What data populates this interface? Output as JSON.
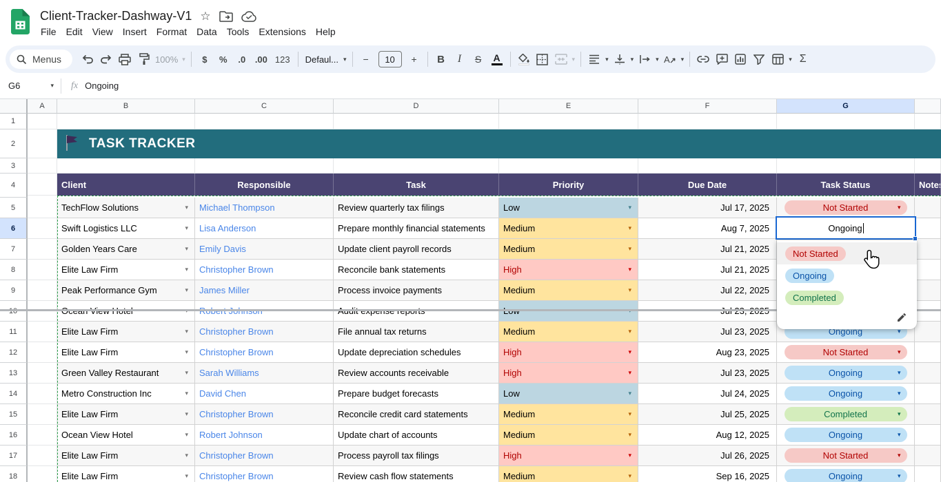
{
  "titlebar": {
    "title": "Client-Tracker-Dashway-V1",
    "menus": [
      "File",
      "Edit",
      "View",
      "Insert",
      "Format",
      "Data",
      "Tools",
      "Extensions",
      "Help"
    ]
  },
  "toolbar": {
    "search_label": "Menus",
    "zoom": "100%",
    "currency": "$",
    "percent": "%",
    "dec_less": ".0",
    "dec_more": ".00",
    "num_format": "123",
    "font_name": "Defaul...",
    "minus": "−",
    "font_size": "10",
    "plus": "+",
    "bold": "B",
    "italic": "I",
    "strike": "S",
    "text_color": "A",
    "sigma": "Σ"
  },
  "icons": {
    "caret": "▾",
    "star": "☆"
  },
  "formula_bar": {
    "cell_ref": "G6",
    "value": "Ongoing"
  },
  "grid": {
    "column_letters": [
      "A",
      "B",
      "C",
      "D",
      "E",
      "F",
      "G"
    ],
    "selected_column": "G",
    "row_numbers": [
      1,
      2,
      3,
      4,
      5,
      6,
      7,
      8,
      9,
      10,
      11,
      12,
      13,
      14,
      15,
      16,
      17,
      18
    ],
    "selected_row": 6
  },
  "sheet": {
    "banner_title": "TASK TRACKER",
    "headers": [
      "Client",
      "Responsible",
      "Task",
      "Priority",
      "Due Date",
      "Task Status",
      "Notes"
    ],
    "rows": [
      {
        "row": 5,
        "client": "TechFlow Solutions",
        "responsible": "Michael Thompson",
        "task": "Review quarterly tax filings",
        "priority": "Low",
        "due": "Jul 17, 2025",
        "status": "Not Started"
      },
      {
        "row": 6,
        "client": "Swift Logistics LLC",
        "responsible": "Lisa Anderson",
        "task": "Prepare monthly financial statements",
        "priority": "Medium",
        "due": "Aug 7, 2025",
        "status": null
      },
      {
        "row": 7,
        "client": "Golden Years Care",
        "responsible": "Emily Davis",
        "task": "Update client payroll records",
        "priority": "Medium",
        "due": "Jul 21, 2025",
        "status": null
      },
      {
        "row": 8,
        "client": "Elite Law Firm",
        "responsible": "Christopher Brown",
        "task": "Reconcile bank statements",
        "priority": "High",
        "due": "Jul 21, 2025",
        "status": null
      },
      {
        "row": 9,
        "client": "Peak Performance Gym",
        "responsible": "James Miller",
        "task": "Process invoice payments",
        "priority": "Medium",
        "due": "Jul 22, 2025",
        "status": null
      },
      {
        "row": 10,
        "client": "Ocean View Hotel",
        "responsible": "Robert Johnson",
        "task": "Audit expense reports",
        "priority": "Low",
        "due": "Jul 23, 2025",
        "status": null
      },
      {
        "row": 11,
        "client": "Elite Law Firm",
        "responsible": "Christopher Brown",
        "task": "File annual tax returns",
        "priority": "Medium",
        "due": "Jul 23, 2025",
        "status": "Ongoing"
      },
      {
        "row": 12,
        "client": "Elite Law Firm",
        "responsible": "Christopher Brown",
        "task": "Update depreciation schedules",
        "priority": "High",
        "due": "Aug 23, 2025",
        "status": "Not Started"
      },
      {
        "row": 13,
        "client": "Green Valley Restaurant",
        "responsible": "Sarah Williams",
        "task": "Review accounts receivable",
        "priority": "High",
        "due": "Jul 23, 2025",
        "status": "Ongoing"
      },
      {
        "row": 14,
        "client": "Metro Construction Inc",
        "responsible": "David Chen",
        "task": "Prepare budget forecasts",
        "priority": "Low",
        "due": "Jul 24, 2025",
        "status": "Ongoing"
      },
      {
        "row": 15,
        "client": "Elite Law Firm",
        "responsible": "Christopher Brown",
        "task": "Reconcile credit card statements",
        "priority": "Medium",
        "due": "Jul 25, 2025",
        "status": "Completed"
      },
      {
        "row": 16,
        "client": "Ocean View Hotel",
        "responsible": "Robert Johnson",
        "task": "Update chart of accounts",
        "priority": "Medium",
        "due": "Aug 12, 2025",
        "status": "Ongoing"
      },
      {
        "row": 17,
        "client": "Elite Law Firm",
        "responsible": "Christopher Brown",
        "task": "Process payroll tax filings",
        "priority": "High",
        "due": "Jul 26, 2025",
        "status": "Not Started"
      },
      {
        "row": 18,
        "client": "Elite Law Firm",
        "responsible": "Christopher Brown",
        "task": "Review cash flow statements",
        "priority": "Medium",
        "due": "Sep 16, 2025",
        "status": "Ongoing"
      }
    ]
  },
  "editor": {
    "cell": "G6",
    "value": "Ongoing"
  },
  "dropdown": {
    "options": [
      "Not Started",
      "Ongoing",
      "Completed"
    ],
    "hovered_option": "Not Started"
  },
  "colors": {
    "banner_teal": "#226d7d",
    "header_purple": "#4a4472",
    "link_blue": "#4a86e8",
    "low_bg": "#bcd6e1",
    "med_bg": "#ffe49e",
    "high_bg": "#ffc9c4",
    "red_text": "#b10202",
    "blue_text": "#0a53a8",
    "green_text": "#11734b",
    "ns_bg": "#f6c9c6",
    "og_bg": "#bfe1f6",
    "cp_bg": "#d4edbc",
    "selected_blue": "#d3e3fd",
    "edit_border": "#1967d2"
  }
}
